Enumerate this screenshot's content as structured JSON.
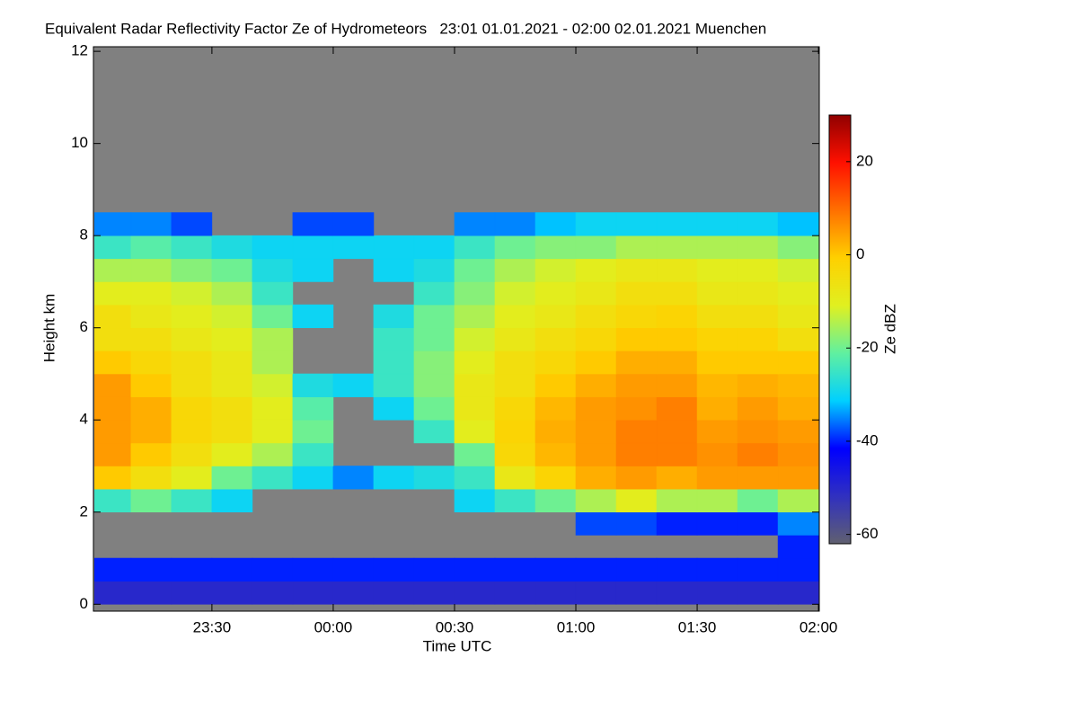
{
  "chart_data": {
    "type": "heatmap",
    "title": "Equivalent Radar Reflectivity Factor Ze of Hydrometeors   23:01 01.01.2021 - 02:00 02.01.2021 Muenchen",
    "x_label": "Time UTC",
    "y_label": "Height km",
    "colorbar_label": "Ze dBZ",
    "background": "#808080",
    "xlim": [
      0.7,
      180.2
    ],
    "xticks": [
      {
        "value": 30,
        "label": "23:30"
      },
      {
        "value": 60,
        "label": "00:00"
      },
      {
        "value": 90,
        "label": "00:30"
      },
      {
        "value": 120,
        "label": "01:00"
      },
      {
        "value": 150,
        "label": "01:30"
      },
      {
        "value": 180,
        "label": "02:00"
      }
    ],
    "ylim": [
      -0.15,
      12.1
    ],
    "yticks": [
      0,
      2,
      4,
      6,
      8,
      10,
      12
    ],
    "zlim": [
      -62,
      30
    ],
    "zticks": [
      -60,
      -40,
      -20,
      0,
      20
    ],
    "colormap": [
      "#606070",
      "#3030c0",
      "#0000ff",
      "#00d0ff",
      "#60f0a0",
      "#e0f020",
      "#ffd000",
      "#ff7000",
      "#ff1000",
      "#900000"
    ],
    "x_bins": [
      1,
      10,
      20,
      30,
      40,
      50,
      60,
      70,
      80,
      90,
      100,
      110,
      120,
      130,
      140,
      150,
      160,
      170,
      180
    ],
    "y_bins": [
      0,
      0.5,
      1,
      1.5,
      2,
      2.5,
      3,
      3.5,
      4,
      4.5,
      5,
      5.5,
      6,
      6.5,
      7,
      7.5,
      8,
      8.5
    ],
    "z": [
      [
        -50,
        -50,
        -50,
        -50,
        -50,
        -50,
        -50,
        -50,
        -50,
        -50,
        -50,
        -50,
        -50,
        -50,
        -50,
        -50,
        -50,
        -50
      ],
      [
        -40,
        -40,
        -40,
        -40,
        -40,
        -40,
        -40,
        -40,
        -40,
        -40,
        -40,
        -40,
        -40,
        -40,
        -40,
        -40,
        -40,
        -40
      ],
      [
        null,
        null,
        null,
        null,
        null,
        null,
        null,
        null,
        null,
        null,
        null,
        null,
        null,
        null,
        null,
        null,
        null,
        -40
      ],
      [
        null,
        null,
        null,
        null,
        null,
        null,
        null,
        null,
        null,
        null,
        null,
        null,
        -38,
        -38,
        -40,
        -40,
        -40,
        -35
      ],
      [
        -25,
        -20,
        -25,
        -30,
        null,
        null,
        null,
        null,
        null,
        -30,
        -25,
        -20,
        -15,
        -10,
        -15,
        -15,
        -20,
        -15
      ],
      [
        0,
        -5,
        -10,
        -20,
        -25,
        -30,
        -35,
        -30,
        -28,
        -25,
        -8,
        -2,
        3,
        5,
        3,
        5,
        5,
        5
      ],
      [
        5,
        0,
        -5,
        -10,
        -15,
        -25,
        null,
        null,
        null,
        -20,
        -3,
        2,
        5,
        8,
        8,
        6,
        8,
        6
      ],
      [
        5,
        3,
        -3,
        -5,
        -10,
        -20,
        null,
        null,
        -25,
        -10,
        -2,
        3,
        5,
        8,
        8,
        5,
        6,
        5
      ],
      [
        5,
        3,
        -3,
        -5,
        -10,
        -22,
        null,
        -30,
        -20,
        -8,
        -3,
        2,
        5,
        6,
        8,
        3,
        5,
        3
      ],
      [
        5,
        0,
        -5,
        -8,
        -12,
        -28,
        -30,
        -25,
        -18,
        -8,
        -5,
        0,
        3,
        5,
        5,
        2,
        3,
        2
      ],
      [
        0,
        -3,
        -5,
        -8,
        -15,
        null,
        null,
        -25,
        -18,
        -10,
        -5,
        -3,
        0,
        3,
        3,
        0,
        0,
        0
      ],
      [
        -5,
        -5,
        -8,
        -10,
        -15,
        null,
        null,
        -25,
        -20,
        -12,
        -8,
        -5,
        -3,
        0,
        0,
        -2,
        -2,
        -5
      ],
      [
        -5,
        -8,
        -10,
        -12,
        -20,
        -30,
        null,
        -28,
        -20,
        -15,
        -10,
        -8,
        -5,
        -3,
        -2,
        -5,
        -5,
        -8
      ],
      [
        -10,
        -10,
        -12,
        -15,
        -25,
        null,
        null,
        null,
        -25,
        -18,
        -12,
        -10,
        -8,
        -5,
        -5,
        -8,
        -8,
        -10
      ],
      [
        -15,
        -15,
        -18,
        -20,
        -28,
        -30,
        null,
        -30,
        -28,
        -20,
        -15,
        -12,
        -10,
        -8,
        -8,
        -10,
        -10,
        -12
      ],
      [
        -25,
        -22,
        -25,
        -28,
        -30,
        -30,
        -30,
        -30,
        -30,
        -25,
        -20,
        -18,
        -18,
        -15,
        -15,
        -15,
        -15,
        -18
      ],
      [
        -35,
        -35,
        -38,
        null,
        null,
        -38,
        -38,
        null,
        null,
        -35,
        -35,
        -32,
        -30,
        -30,
        -30,
        -30,
        -30,
        -32
      ]
    ]
  }
}
